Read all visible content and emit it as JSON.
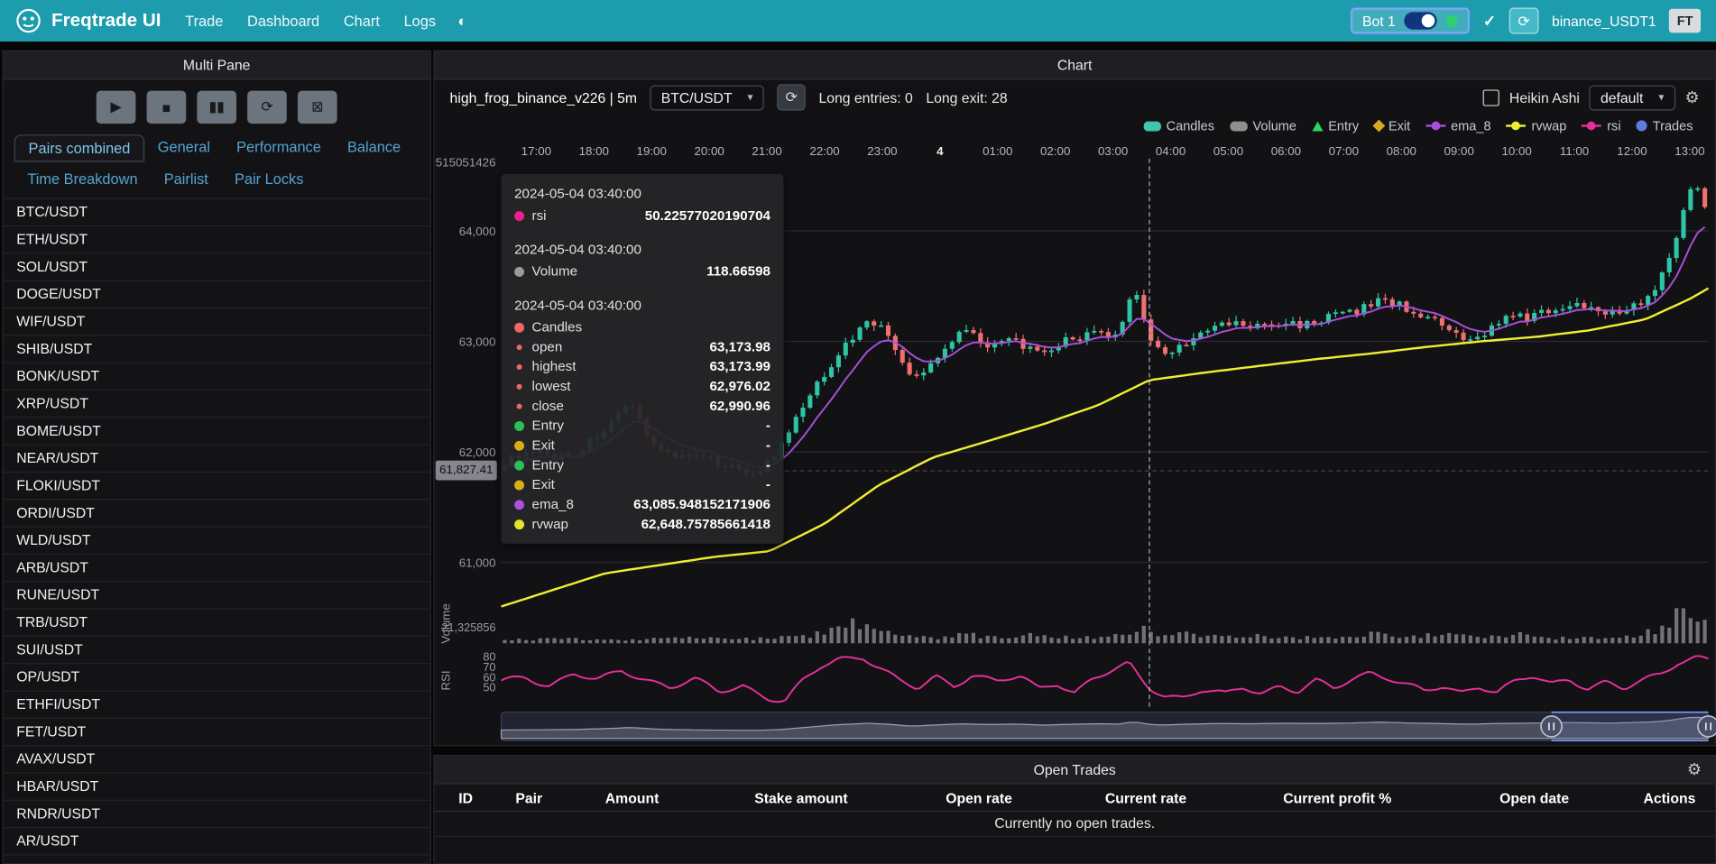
{
  "navbar": {
    "brand": "Freqtrade UI",
    "items": [
      "Trade",
      "Dashboard",
      "Chart",
      "Logs"
    ],
    "theme_icon": "◐",
    "bot_label": "Bot 1",
    "exchange": "binance_USDT1",
    "avatar": "FT"
  },
  "multi_pane": {
    "title": "Multi Pane",
    "controls": [
      {
        "name": "play",
        "glyph": "▶"
      },
      {
        "name": "stop",
        "glyph": "■"
      },
      {
        "name": "pause",
        "glyph": "▮▮"
      },
      {
        "name": "reload",
        "glyph": "⟳"
      },
      {
        "name": "remove-chart",
        "glyph": "⊠"
      }
    ],
    "tabs": [
      {
        "label": "Pairs combined",
        "active": true
      },
      {
        "label": "General",
        "active": false
      },
      {
        "label": "Performance",
        "active": false
      },
      {
        "label": "Balance",
        "active": false
      },
      {
        "label": "Time Breakdown",
        "active": false
      },
      {
        "label": "Pairlist",
        "active": false
      },
      {
        "label": "Pair Locks",
        "active": false
      }
    ],
    "pairs": [
      "BTC/USDT",
      "ETH/USDT",
      "SOL/USDT",
      "DOGE/USDT",
      "WIF/USDT",
      "SHIB/USDT",
      "BONK/USDT",
      "XRP/USDT",
      "BOME/USDT",
      "NEAR/USDT",
      "FLOKI/USDT",
      "ORDI/USDT",
      "WLD/USDT",
      "ARB/USDT",
      "RUNE/USDT",
      "TRB/USDT",
      "SUI/USDT",
      "OP/USDT",
      "ETHFI/USDT",
      "FET/USDT",
      "AVAX/USDT",
      "HBAR/USDT",
      "RNDR/USDT",
      "AR/USDT"
    ]
  },
  "chart": {
    "title": "Chart",
    "strategy": "high_frog_binance_v226 | 5m",
    "pair_select": "BTC/USDT",
    "refresh_glyph": "⟳",
    "long_entries": "Long entries: 0",
    "long_exit": "Long exit: 28",
    "heikin_label": "Heikin Ashi",
    "plot_config": "default",
    "legend": [
      {
        "label": "Candles",
        "marker": "pill",
        "color": "#3fc6ad"
      },
      {
        "label": "Volume",
        "marker": "pill",
        "color": "#8f8f8f"
      },
      {
        "label": "Entry",
        "marker": "triangle",
        "color": "#2bd85e"
      },
      {
        "label": "Exit",
        "marker": "diamond",
        "color": "#d8a723"
      },
      {
        "label": "ema_8",
        "marker": "line",
        "color": "#a94fd8"
      },
      {
        "label": "rvwap",
        "marker": "line",
        "color": "#f0ee33"
      },
      {
        "label": "rsi",
        "marker": "line",
        "color": "#e6309a"
      },
      {
        "label": "Trades",
        "marker": "circle",
        "color": "#5b7de0"
      }
    ],
    "tooltip": {
      "sections": [
        {
          "time": "2024-05-04 03:40:00",
          "rows": [
            {
              "color": "#ec1f8e",
              "label": "rsi",
              "value": "50.22577020190704",
              "size": "normal"
            }
          ]
        },
        {
          "time": "2024-05-04 03:40:00",
          "rows": [
            {
              "color": "#9b9b9b",
              "label": "Volume",
              "value": "118.66598",
              "size": "normal"
            }
          ]
        },
        {
          "time": "2024-05-04 03:40:00",
          "rows": [
            {
              "color": "#ee6666",
              "label": "Candles",
              "value": "",
              "size": "normal"
            },
            {
              "color": "#ee6666",
              "label": "open",
              "value": "63,173.98",
              "size": "small"
            },
            {
              "color": "#ee6666",
              "label": "highest",
              "value": "63,173.99",
              "size": "small"
            },
            {
              "color": "#ee6666",
              "label": "lowest",
              "value": "62,976.02",
              "size": "small"
            },
            {
              "color": "#ee6666",
              "label": "close",
              "value": "62,990.96",
              "size": "small"
            },
            {
              "color": "#2bbf57",
              "label": "Entry",
              "value": "-",
              "size": "normal"
            },
            {
              "color": "#d4b012",
              "label": "Exit",
              "value": "-",
              "size": "normal"
            },
            {
              "color": "#2bbf57",
              "label": "Entry",
              "value": "-",
              "size": "normal"
            },
            {
              "color": "#d4b012",
              "label": "Exit",
              "value": "-",
              "size": "normal"
            },
            {
              "color": "#b04fe0",
              "label": "ema_8",
              "value": "63,085.948152171906",
              "size": "normal"
            },
            {
              "color": "#e7e32b",
              "label": "rvwap",
              "value": "62,648.75785661418",
              "size": "normal"
            }
          ]
        }
      ]
    }
  },
  "chart_data": {
    "type": "candlestick",
    "x_labels": [
      "17:00",
      "18:00",
      "19:00",
      "20:00",
      "21:00",
      "22:00",
      "23:00",
      "4",
      "01:00",
      "02:00",
      "03:00",
      "04:00",
      "05:00",
      "06:00",
      "07:00",
      "08:00",
      "09:00",
      "10:00",
      "11:00",
      "12:00",
      "13:00"
    ],
    "price_ticks": [
      {
        "label": "64,000",
        "price": 64000
      },
      {
        "label": "63,000",
        "price": 63000
      },
      {
        "label": "62,000",
        "price": 62000
      },
      {
        "label": "61,000",
        "price": 61000
      }
    ],
    "top_axis_label": "515051426",
    "volume_pane_label": "Volume",
    "volume_axis_label": "21,325856",
    "rsi_pane_label": "RSI",
    "rsi_ticks": [
      80,
      70,
      60,
      50
    ],
    "ylim": [
      60600,
      64650
    ],
    "crosshair": {
      "time_frac": 0.537,
      "price": 61827.41,
      "price_label": "61,827.41"
    },
    "price_path": [
      [
        0,
        61900
      ],
      [
        0.059,
        62000
      ],
      [
        0.095,
        62250
      ],
      [
        0.107,
        62400
      ],
      [
        0.131,
        62050
      ],
      [
        0.168,
        61900
      ],
      [
        0.213,
        61850
      ],
      [
        0.231,
        62000
      ],
      [
        0.249,
        62350
      ],
      [
        0.277,
        62900
      ],
      [
        0.304,
        63200
      ],
      [
        0.322,
        63000
      ],
      [
        0.34,
        62650
      ],
      [
        0.363,
        62900
      ],
      [
        0.381,
        63100
      ],
      [
        0.404,
        62950
      ],
      [
        0.426,
        63050
      ],
      [
        0.449,
        62850
      ],
      [
        0.472,
        63000
      ],
      [
        0.494,
        63100
      ],
      [
        0.512,
        63050
      ],
      [
        0.524,
        63550
      ],
      [
        0.53,
        63250
      ],
      [
        0.537,
        62990
      ],
      [
        0.548,
        62850
      ],
      [
        0.571,
        63050
      ],
      [
        0.594,
        63150
      ],
      [
        0.621,
        63100
      ],
      [
        0.648,
        63200
      ],
      [
        0.676,
        63150
      ],
      [
        0.703,
        63250
      ],
      [
        0.73,
        63430
      ],
      [
        0.753,
        63250
      ],
      [
        0.775,
        63150
      ],
      [
        0.803,
        63020
      ],
      [
        0.825,
        63150
      ],
      [
        0.848,
        63200
      ],
      [
        0.875,
        63350
      ],
      [
        0.902,
        63300
      ],
      [
        0.92,
        63230
      ],
      [
        0.938,
        63350
      ],
      [
        0.957,
        63500
      ],
      [
        0.97,
        63800
      ],
      [
        0.982,
        64300
      ],
      [
        0.993,
        64350
      ],
      [
        1,
        64150
      ]
    ],
    "rvwap_path": [
      [
        0,
        60600
      ],
      [
        0.086,
        60900
      ],
      [
        0.177,
        61050
      ],
      [
        0.222,
        61100
      ],
      [
        0.268,
        61350
      ],
      [
        0.313,
        61700
      ],
      [
        0.358,
        61950
      ],
      [
        0.404,
        62100
      ],
      [
        0.449,
        62250
      ],
      [
        0.494,
        62420
      ],
      [
        0.537,
        62649
      ],
      [
        0.585,
        62720
      ],
      [
        0.63,
        62780
      ],
      [
        0.676,
        62840
      ],
      [
        0.721,
        62890
      ],
      [
        0.767,
        62950
      ],
      [
        0.812,
        63000
      ],
      [
        0.857,
        63040
      ],
      [
        0.902,
        63100
      ],
      [
        0.948,
        63200
      ],
      [
        0.984,
        63380
      ],
      [
        1,
        63480
      ]
    ],
    "rsi_path": [
      [
        0,
        55
      ],
      [
        0.02,
        60
      ],
      [
        0.04,
        52
      ],
      [
        0.06,
        63
      ],
      [
        0.08,
        56
      ],
      [
        0.1,
        66
      ],
      [
        0.12,
        58
      ],
      [
        0.14,
        50
      ],
      [
        0.16,
        57
      ],
      [
        0.18,
        45
      ],
      [
        0.2,
        52
      ],
      [
        0.22,
        40
      ],
      [
        0.235,
        36
      ],
      [
        0.25,
        55
      ],
      [
        0.265,
        70
      ],
      [
        0.28,
        78
      ],
      [
        0.3,
        80
      ],
      [
        0.315,
        68
      ],
      [
        0.33,
        55
      ],
      [
        0.345,
        48
      ],
      [
        0.36,
        60
      ],
      [
        0.375,
        52
      ],
      [
        0.39,
        63
      ],
      [
        0.41,
        55
      ],
      [
        0.43,
        60
      ],
      [
        0.445,
        48
      ],
      [
        0.46,
        55
      ],
      [
        0.475,
        45
      ],
      [
        0.49,
        58
      ],
      [
        0.505,
        65
      ],
      [
        0.52,
        72
      ],
      [
        0.53,
        58
      ],
      [
        0.537,
        50
      ],
      [
        0.55,
        42
      ],
      [
        0.565,
        40
      ],
      [
        0.58,
        47
      ],
      [
        0.6,
        42
      ],
      [
        0.615,
        50
      ],
      [
        0.63,
        44
      ],
      [
        0.645,
        52
      ],
      [
        0.66,
        46
      ],
      [
        0.675,
        55
      ],
      [
        0.69,
        48
      ],
      [
        0.705,
        58
      ],
      [
        0.72,
        65
      ],
      [
        0.735,
        60
      ],
      [
        0.75,
        52
      ],
      [
        0.765,
        45
      ],
      [
        0.78,
        50
      ],
      [
        0.795,
        44
      ],
      [
        0.81,
        52
      ],
      [
        0.825,
        46
      ],
      [
        0.84,
        55
      ],
      [
        0.855,
        60
      ],
      [
        0.87,
        52
      ],
      [
        0.885,
        58
      ],
      [
        0.9,
        50
      ],
      [
        0.915,
        55
      ],
      [
        0.93,
        48
      ],
      [
        0.945,
        55
      ],
      [
        0.96,
        62
      ],
      [
        0.975,
        75
      ],
      [
        0.99,
        80
      ],
      [
        1,
        78
      ]
    ],
    "volume_path": [
      [
        0,
        3
      ],
      [
        0.05,
        4
      ],
      [
        0.1,
        3
      ],
      [
        0.15,
        5
      ],
      [
        0.2,
        4
      ],
      [
        0.25,
        6
      ],
      [
        0.27,
        10
      ],
      [
        0.285,
        20
      ],
      [
        0.295,
        16
      ],
      [
        0.305,
        22
      ],
      [
        0.315,
        10
      ],
      [
        0.33,
        6
      ],
      [
        0.36,
        5
      ],
      [
        0.385,
        8
      ],
      [
        0.41,
        5
      ],
      [
        0.45,
        9
      ],
      [
        0.47,
        5
      ],
      [
        0.5,
        6
      ],
      [
        0.515,
        8
      ],
      [
        0.527,
        16
      ],
      [
        0.54,
        8
      ],
      [
        0.56,
        11
      ],
      [
        0.58,
        6
      ],
      [
        0.62,
        8
      ],
      [
        0.65,
        5
      ],
      [
        0.68,
        6
      ],
      [
        0.71,
        5
      ],
      [
        0.73,
        11
      ],
      [
        0.75,
        6
      ],
      [
        0.78,
        8
      ],
      [
        0.81,
        5
      ],
      [
        0.84,
        9
      ],
      [
        0.87,
        5
      ],
      [
        0.9,
        6
      ],
      [
        0.93,
        5
      ],
      [
        0.955,
        12
      ],
      [
        0.968,
        22
      ],
      [
        0.978,
        30
      ],
      [
        0.988,
        26
      ],
      [
        0.996,
        18
      ],
      [
        1,
        14
      ]
    ],
    "datazoom": {
      "start_frac": 0.87,
      "end_frac": 1.0
    }
  },
  "open_trades": {
    "title": "Open Trades",
    "columns": [
      "ID",
      "Pair",
      "Amount",
      "Stake amount",
      "Open rate",
      "Current rate",
      "Current profit %",
      "Open date",
      "Actions"
    ],
    "empty_text": "Currently no open trades."
  }
}
